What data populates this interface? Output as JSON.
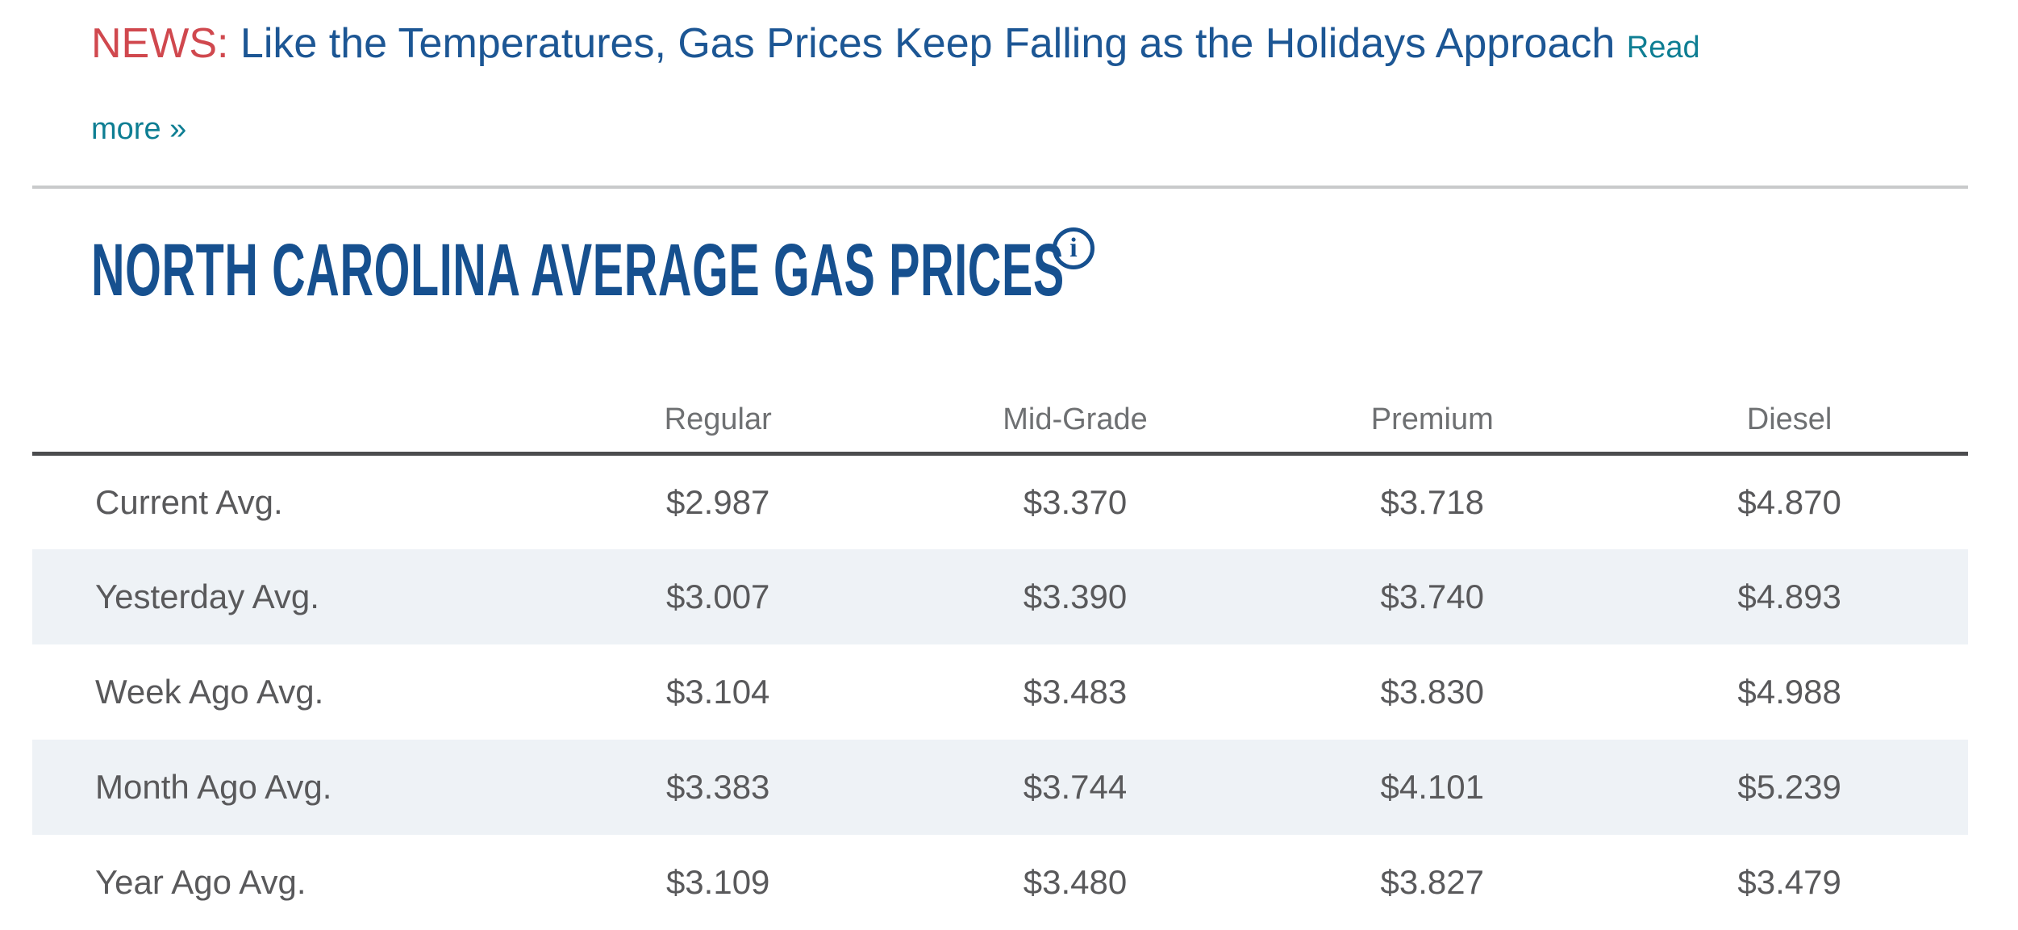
{
  "news": {
    "label": "NEWS:",
    "headline": "Like the Temperatures, Gas Prices Keep Falling as the Holidays Approach",
    "read_more_parts": [
      "Read",
      "more »"
    ]
  },
  "page": {
    "title": "NORTH CAROLINA AVERAGE GAS PRICES",
    "info_glyph": "i"
  },
  "table": {
    "columns": [
      "Regular",
      "Mid-Grade",
      "Premium",
      "Diesel"
    ],
    "rows": [
      {
        "label": "Current Avg.",
        "values": [
          "$2.987",
          "$3.370",
          "$3.718",
          "$4.870"
        ]
      },
      {
        "label": "Yesterday Avg.",
        "values": [
          "$3.007",
          "$3.390",
          "$3.740",
          "$4.893"
        ]
      },
      {
        "label": "Week Ago Avg.",
        "values": [
          "$3.104",
          "$3.483",
          "$3.830",
          "$4.988"
        ]
      },
      {
        "label": "Month Ago Avg.",
        "values": [
          "$3.383",
          "$3.744",
          "$4.101",
          "$5.239"
        ]
      },
      {
        "label": "Year Ago Avg.",
        "values": [
          "$3.109",
          "$3.480",
          "$3.827",
          "$3.479"
        ]
      }
    ]
  },
  "colors": {
    "news_red": "#d0484e",
    "headline_blue": "#1c5694",
    "link_teal": "#0e7e93",
    "heading_navy": "#16508f",
    "header_gray": "#6e7072",
    "cell_gray": "#59595b",
    "alt_row_bg": "#eef2f6"
  }
}
